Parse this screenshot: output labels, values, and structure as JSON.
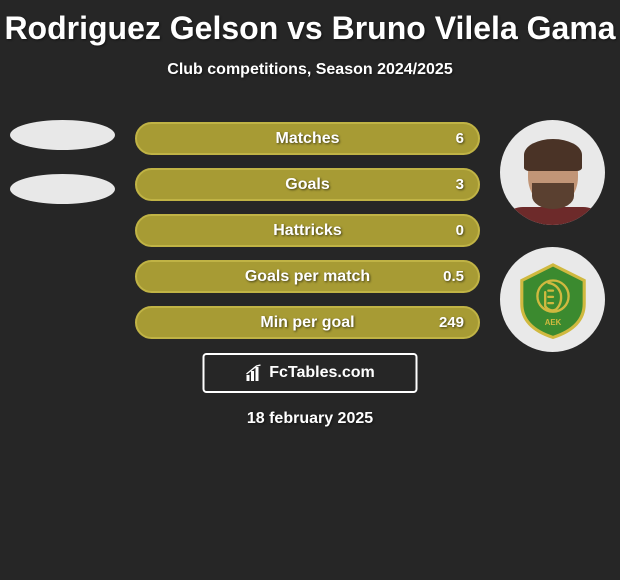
{
  "title": "Rodriguez Gelson vs Bruno Vilela Gama",
  "subtitle": "Club competitions, Season 2024/2025",
  "date_text": "18 february 2025",
  "brand": {
    "text": "FcTables.com"
  },
  "colors": {
    "bar_fill": "#a79b34",
    "bar_border": "#c0b345",
    "placeholder_ellipse": "#e8e8e8",
    "badge_green": "#3b8a2f",
    "badge_gold": "#d0b93f"
  },
  "bars": [
    {
      "label": "Matches",
      "value": "6"
    },
    {
      "label": "Goals",
      "value": "3"
    },
    {
      "label": "Hattricks",
      "value": "0"
    },
    {
      "label": "Goals per match",
      "value": "0.5"
    },
    {
      "label": "Min per goal",
      "value": "249"
    }
  ]
}
